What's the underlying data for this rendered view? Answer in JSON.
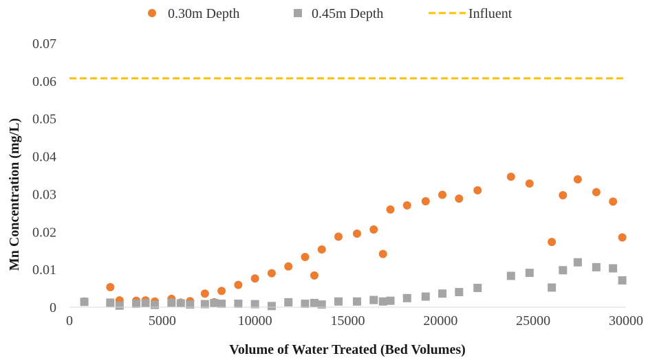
{
  "chart_data": {
    "type": "scatter",
    "xlabel": "Volume of Water Treated (Bed Volumes)",
    "ylabel": "Mn Concentration (mg/L)",
    "xlim": [
      0,
      30000
    ],
    "ylim": [
      0,
      0.07
    ],
    "x_ticks": [
      0,
      5000,
      10000,
      15000,
      20000,
      25000,
      30000
    ],
    "y_ticks": [
      0,
      0.01,
      0.02,
      0.03,
      0.04,
      0.05,
      0.06,
      0.07
    ],
    "x_tick_labels": [
      "0",
      "5000",
      "10000",
      "15000",
      "20000",
      "25000",
      "30000"
    ],
    "y_tick_labels": [
      "0",
      "0.01",
      "0.02",
      "0.03",
      "0.04",
      "0.05",
      "0.06",
      "0.07"
    ],
    "grid": false,
    "legend_position": "top",
    "series": [
      {
        "name": "0.30m Depth",
        "marker": "circle",
        "color": "#ED7D31",
        "points": [
          [
            800,
            0.0015
          ],
          [
            2200,
            0.0053
          ],
          [
            2700,
            0.0018
          ],
          [
            3600,
            0.0017
          ],
          [
            4100,
            0.0018
          ],
          [
            4600,
            0.0015
          ],
          [
            5500,
            0.0022
          ],
          [
            6000,
            0.0012
          ],
          [
            6500,
            0.0016
          ],
          [
            7300,
            0.0036
          ],
          [
            7800,
            0.0013
          ],
          [
            8200,
            0.0043
          ],
          [
            9100,
            0.0059
          ],
          [
            10000,
            0.0076
          ],
          [
            10900,
            0.009
          ],
          [
            11800,
            0.0108
          ],
          [
            12700,
            0.0133
          ],
          [
            13200,
            0.0084
          ],
          [
            13600,
            0.0153
          ],
          [
            14500,
            0.0187
          ],
          [
            15500,
            0.0195
          ],
          [
            16400,
            0.0206
          ],
          [
            16900,
            0.0141
          ],
          [
            17300,
            0.0259
          ],
          [
            18200,
            0.027
          ],
          [
            19200,
            0.0281
          ],
          [
            20100,
            0.0298
          ],
          [
            21000,
            0.0288
          ],
          [
            22000,
            0.031
          ],
          [
            23800,
            0.0346
          ],
          [
            24800,
            0.0328
          ],
          [
            26000,
            0.0173
          ],
          [
            26600,
            0.0297
          ],
          [
            27400,
            0.0339
          ],
          [
            28400,
            0.0305
          ],
          [
            29300,
            0.028
          ],
          [
            29800,
            0.0185
          ]
        ]
      },
      {
        "name": "0.45m Depth",
        "marker": "square",
        "color": "#A5A5A5",
        "points": [
          [
            800,
            0.0014
          ],
          [
            2200,
            0.0012
          ],
          [
            2700,
            0.0004
          ],
          [
            3600,
            0.0009
          ],
          [
            4100,
            0.001
          ],
          [
            4600,
            0.0006
          ],
          [
            5500,
            0.0012
          ],
          [
            6000,
            0.001
          ],
          [
            6500,
            0.0007
          ],
          [
            7300,
            0.0008
          ],
          [
            7800,
            0.0011
          ],
          [
            8200,
            0.0009
          ],
          [
            9100,
            0.0009
          ],
          [
            10000,
            0.0008
          ],
          [
            10900,
            0.0003
          ],
          [
            11800,
            0.0013
          ],
          [
            12700,
            0.0009
          ],
          [
            13200,
            0.0011
          ],
          [
            13600,
            0.0007
          ],
          [
            14500,
            0.0015
          ],
          [
            15500,
            0.0015
          ],
          [
            16400,
            0.0019
          ],
          [
            16900,
            0.0015
          ],
          [
            17300,
            0.0017
          ],
          [
            18200,
            0.0024
          ],
          [
            19200,
            0.0028
          ],
          [
            20100,
            0.0036
          ],
          [
            21000,
            0.004
          ],
          [
            22000,
            0.0051
          ],
          [
            23800,
            0.0083
          ],
          [
            24800,
            0.0091
          ],
          [
            26000,
            0.0052
          ],
          [
            26600,
            0.0098
          ],
          [
            27400,
            0.0119
          ],
          [
            28400,
            0.0106
          ],
          [
            29300,
            0.0103
          ],
          [
            29800,
            0.0071
          ]
        ]
      },
      {
        "name": "Influent",
        "marker": "dashed-line",
        "color": "#FFC000",
        "points": [
          [
            0,
            0.0607
          ],
          [
            30000,
            0.0607
          ]
        ]
      }
    ]
  }
}
